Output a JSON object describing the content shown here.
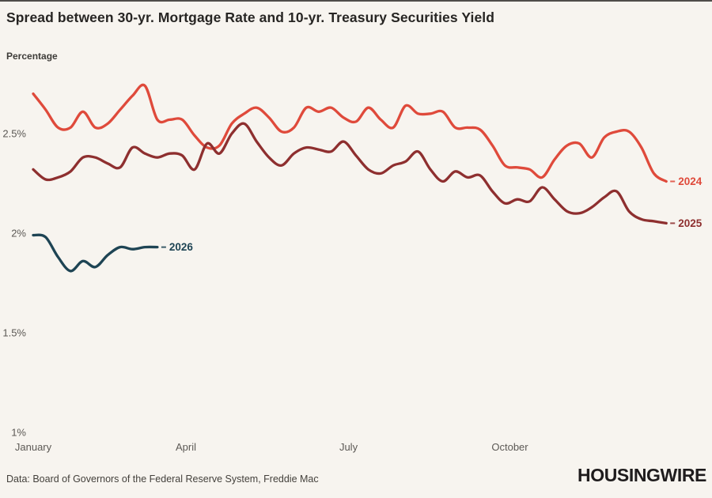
{
  "title": "Spread between 30-yr. Mortgage Rate and 10-yr. Treasury Securities Yield",
  "y_axis_caption": "Percentage",
  "footer": {
    "source": "Data: Board of Governors of the Federal Reserve System, Freddie Mac",
    "brand": "HOUSINGWIRE"
  },
  "colors": {
    "background": "#f7f4ef",
    "title_text": "#272523",
    "axis_text": "#5c5955",
    "top_border": "#4f4d4a",
    "series_2024": "#df4a3b",
    "series_2025": "#8e2f2f",
    "series_2026": "#1e4454"
  },
  "chart_data": {
    "type": "line",
    "title": "Spread between 30-yr. Mortgage Rate and 10-yr. Treasury Securities Yield",
    "ylabel": "Percentage",
    "x_unit": "week_of_year",
    "x_axis": {
      "tick_labels": [
        "January",
        "April",
        "July",
        "October"
      ],
      "tick_weeks": [
        1,
        13.3,
        26.4,
        39.4
      ],
      "domain_weeks": [
        1,
        53
      ]
    },
    "y_axis": {
      "tick_labels": [
        "2.5%",
        "2%",
        "1.5%",
        "1%"
      ],
      "tick_values": [
        2.5,
        2.0,
        1.5,
        1.0
      ],
      "ylim": [
        0.95,
        2.85
      ],
      "grid": false
    },
    "legend_position": "line-end-labels",
    "series": [
      {
        "name": "2024",
        "color": "#df4a3b",
        "start_week": 1,
        "values": [
          2.7,
          2.62,
          2.53,
          2.53,
          2.61,
          2.53,
          2.55,
          2.62,
          2.69,
          2.74,
          2.57,
          2.57,
          2.57,
          2.49,
          2.43,
          2.44,
          2.55,
          2.6,
          2.63,
          2.58,
          2.51,
          2.53,
          2.63,
          2.61,
          2.63,
          2.58,
          2.56,
          2.63,
          2.57,
          2.53,
          2.64,
          2.6,
          2.6,
          2.61,
          2.53,
          2.53,
          2.52,
          2.44,
          2.34,
          2.33,
          2.32,
          2.28,
          2.37,
          2.44,
          2.45,
          2.38,
          2.48,
          2.51,
          2.51,
          2.43,
          2.3,
          2.26
        ]
      },
      {
        "name": "2025",
        "color": "#8e2f2f",
        "start_week": 1,
        "values": [
          2.32,
          2.27,
          2.28,
          2.31,
          2.38,
          2.38,
          2.35,
          2.33,
          2.43,
          2.4,
          2.38,
          2.4,
          2.39,
          2.32,
          2.45,
          2.4,
          2.5,
          2.55,
          2.46,
          2.38,
          2.34,
          2.4,
          2.43,
          2.42,
          2.41,
          2.46,
          2.39,
          2.32,
          2.3,
          2.34,
          2.36,
          2.41,
          2.32,
          2.26,
          2.31,
          2.28,
          2.29,
          2.21,
          2.15,
          2.17,
          2.16,
          2.23,
          2.17,
          2.11,
          2.1,
          2.13,
          2.18,
          2.21,
          2.11,
          2.07,
          2.06,
          2.05
        ]
      },
      {
        "name": "2026",
        "color": "#1e4454",
        "start_week": 1,
        "values": [
          1.99,
          1.98,
          1.88,
          1.81,
          1.86,
          1.83,
          1.89,
          1.93,
          1.92,
          1.93,
          1.93
        ]
      }
    ]
  }
}
